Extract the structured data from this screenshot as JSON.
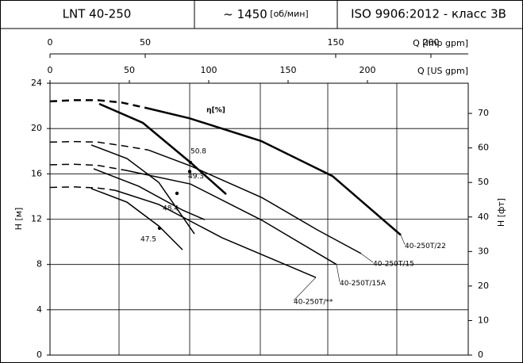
{
  "header": {
    "model": "LNT 40-250",
    "speed": "~ 1450",
    "speed_unit": "[об/мин]",
    "standard": "ISO 9906:2012 -  класс 3B"
  },
  "chart_data": {
    "type": "line",
    "xlabel": "Q [US gpm]",
    "x2label": "Q [Imp gpm]",
    "ylabel": "H [м]",
    "y2label": "H [фт]",
    "eta_label": "η[%]",
    "xlim": [
      0,
      263.5
    ],
    "xticks": [
      0,
      50,
      100,
      150,
      200
    ],
    "x2lim": [
      0,
      219.6
    ],
    "x2ticks": [
      0,
      50,
      150,
      200
    ],
    "ylim": [
      0,
      24
    ],
    "yticks": [
      0,
      4,
      8,
      12,
      16,
      20,
      24
    ],
    "y2lim": [
      0,
      78.74
    ],
    "y2ticks": [
      0,
      10,
      20,
      30,
      40,
      50,
      60,
      70
    ],
    "grid": true,
    "series": [
      {
        "name": "40-250T/22",
        "color": "#000000",
        "line_width": 2.5,
        "dashed": {
          "x": [
            0,
            15,
            30,
            45,
            61
          ],
          "y": [
            22.4,
            22.5,
            22.5,
            22.3,
            21.8
          ]
        },
        "solid": {
          "x": [
            61,
            88,
            133,
            178,
            221
          ],
          "y": [
            21.8,
            20.9,
            18.9,
            15.8,
            10.6
          ]
        }
      },
      {
        "name": "40-250T/15",
        "color": "#000000",
        "line_width": 1.5,
        "dashed": {
          "x": [
            0,
            15,
            30,
            45,
            62
          ],
          "y": [
            18.8,
            18.85,
            18.8,
            18.5,
            18.1
          ]
        },
        "solid": {
          "x": [
            62,
            88.5,
            133.5,
            168.5,
            196
          ],
          "y": [
            18.1,
            16.7,
            13.9,
            11.05,
            8.96
          ]
        }
      },
      {
        "name": "40-250T/15A",
        "color": "#000000",
        "line_width": 1.5,
        "dashed": {
          "x": [
            0,
            15,
            30,
            48
          ],
          "y": [
            16.8,
            16.85,
            16.75,
            16.3
          ]
        },
        "solid": {
          "x": [
            48,
            88.5,
            133.5,
            180.5
          ],
          "y": [
            16.3,
            15.1,
            11.9,
            8.0
          ]
        }
      },
      {
        "name": "40-250T/**",
        "color": "#000000",
        "line_width": 1.5,
        "dashed": {
          "x": [
            0,
            15,
            30,
            41
          ],
          "y": [
            14.8,
            14.85,
            14.75,
            14.55
          ]
        },
        "solid": {
          "x": [
            41,
            68.5,
            108.5,
            167.5
          ],
          "y": [
            14.55,
            13.3,
            10.35,
            6.85
          ]
        }
      }
    ],
    "efficiency": [
      {
        "x": [
          31,
          58.5,
          88.5,
          111
        ],
        "y": [
          22.18,
          20.5,
          17.0,
          14.2
        ],
        "line_width": 2.5
      },
      {
        "x": [
          26,
          48.5,
          68.5,
          91
        ],
        "y": [
          18.55,
          17.35,
          15.25,
          10.7
        ],
        "line_width": 1.5
      },
      {
        "x": [
          27.5,
          56,
          83.5,
          97.5
        ],
        "y": [
          16.45,
          14.9,
          12.8,
          11.95
        ],
        "line_width": 1.5
      },
      {
        "x": [
          26,
          48.5,
          68.5,
          83.5
        ],
        "y": [
          14.7,
          13.5,
          11.4,
          9.3
        ],
        "line_width": 1.5
      }
    ],
    "bep": [
      {
        "x": 88.5,
        "y": 17.0,
        "value": 50.8
      },
      {
        "x": 88,
        "y": 16.2,
        "value": 49.3
      },
      {
        "x": 80,
        "y": 14.28,
        "value": 48.4
      },
      {
        "x": 69,
        "y": 11.2,
        "value": 47.5
      }
    ]
  }
}
